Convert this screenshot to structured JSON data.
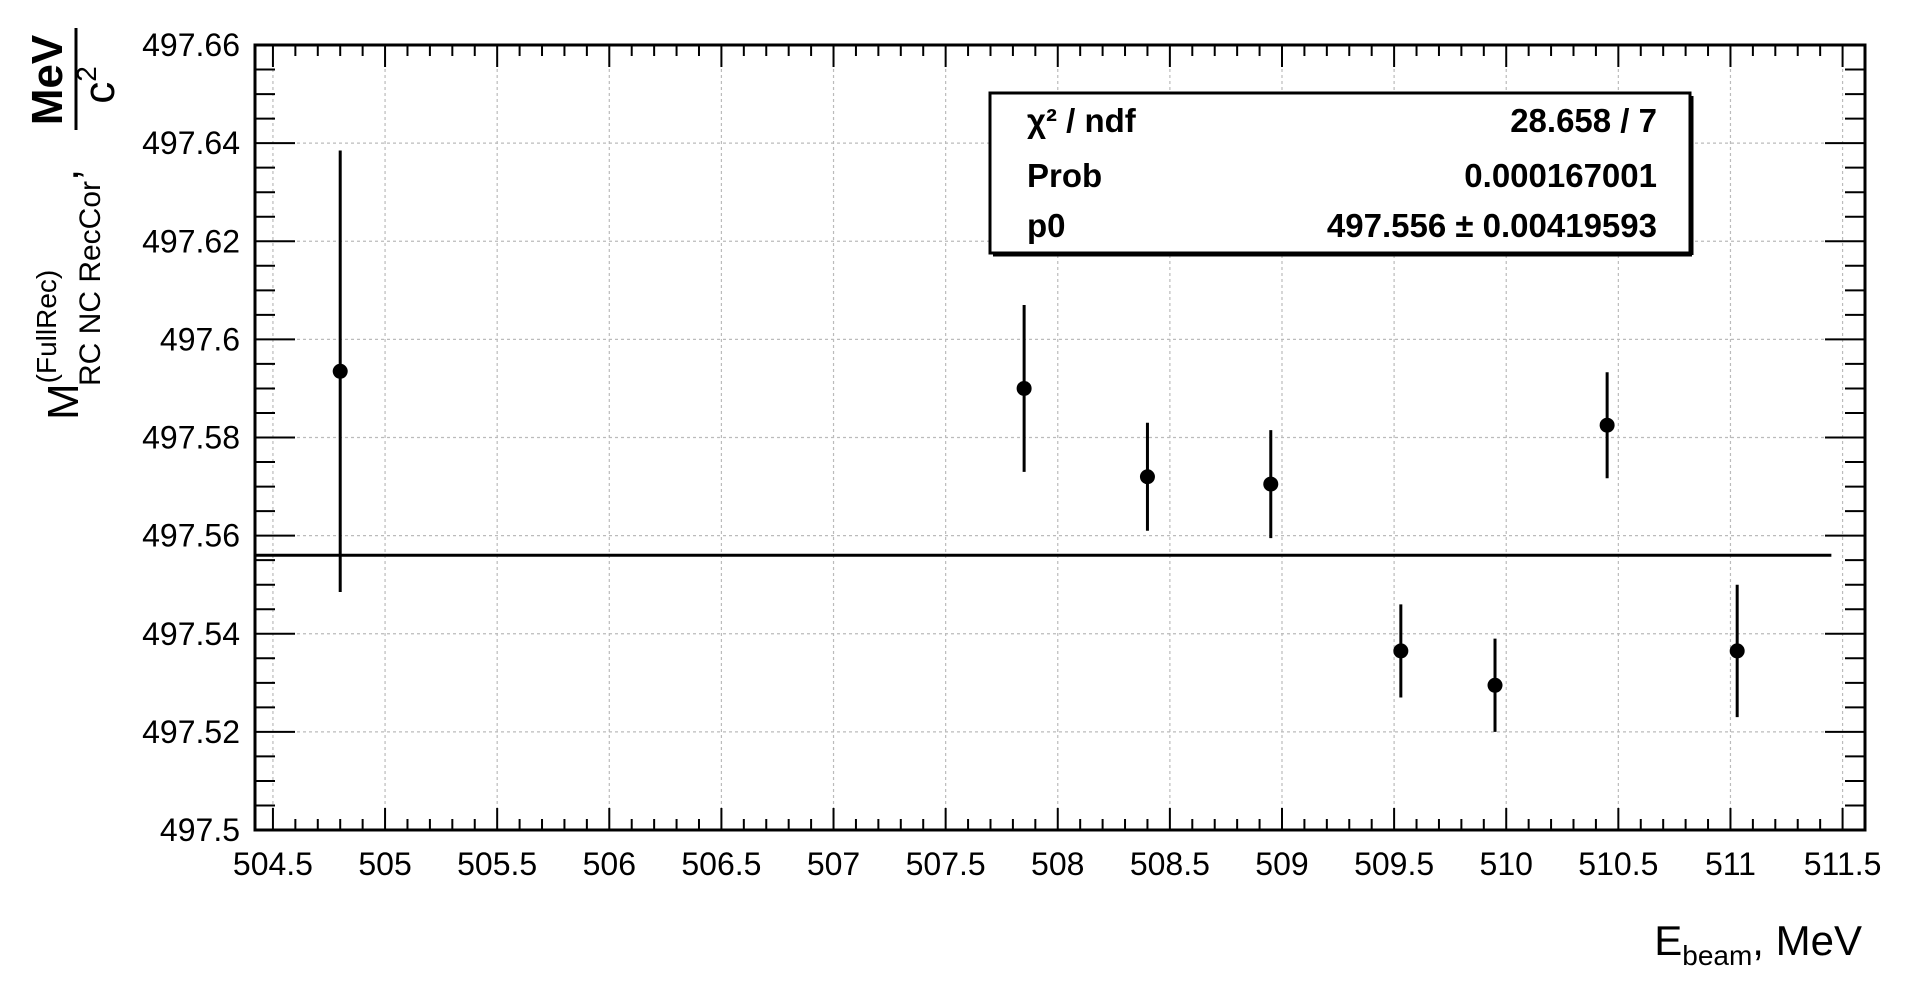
{
  "chart_data": {
    "type": "scatter",
    "xlabel": {
      "main": "E",
      "sub": "beam",
      "suffix": ", MeV"
    },
    "ylabel": {
      "main": "M",
      "sup": "(FullRec)",
      "sub": "RC NC RecCor",
      "comma": ",",
      "unit_num": "MeV",
      "unit_den": "c",
      "unit_den_exp": "2"
    },
    "xlim": [
      504.42,
      511.6
    ],
    "ylim": [
      497.5,
      497.66
    ],
    "x_ticks": [
      "504.5",
      "505",
      "505.5",
      "506",
      "506.5",
      "507",
      "507.5",
      "508",
      "508.5",
      "509",
      "509.5",
      "510",
      "510.5",
      "511",
      "511.5"
    ],
    "x_tick_values": [
      504.5,
      505,
      505.5,
      506,
      506.5,
      507,
      507.5,
      508,
      508.5,
      509,
      509.5,
      510,
      510.5,
      511,
      511.5
    ],
    "y_ticks": [
      "497.5",
      "497.52",
      "497.54",
      "497.56",
      "497.58",
      "497.6",
      "497.62",
      "497.64",
      "497.66"
    ],
    "y_tick_values": [
      497.5,
      497.52,
      497.54,
      497.56,
      497.58,
      497.6,
      497.62,
      497.64,
      497.66
    ],
    "grid": true,
    "points": [
      {
        "x": 504.8,
        "y": 497.5935,
        "err": 0.045
      },
      {
        "x": 507.85,
        "y": 497.59,
        "err": 0.017
      },
      {
        "x": 508.4,
        "y": 497.572,
        "err": 0.011
      },
      {
        "x": 508.95,
        "y": 497.5705,
        "err": 0.011
      },
      {
        "x": 509.53,
        "y": 497.5365,
        "err": 0.0095
      },
      {
        "x": 509.95,
        "y": 497.5295,
        "err": 0.0095
      },
      {
        "x": 510.45,
        "y": 497.5825,
        "err": 0.0108
      },
      {
        "x": 511.03,
        "y": 497.5365,
        "err": 0.0135
      }
    ],
    "fit": {
      "value": 497.556,
      "x_range": [
        504.42,
        511.45
      ]
    },
    "stats_box": {
      "rows": [
        {
          "label": "χ² / ndf",
          "value": "28.658 / 7"
        },
        {
          "label": "Prob",
          "value": "0.000167001"
        },
        {
          "label": "p0",
          "value": "497.556 ± 0.00419593"
        }
      ]
    }
  }
}
